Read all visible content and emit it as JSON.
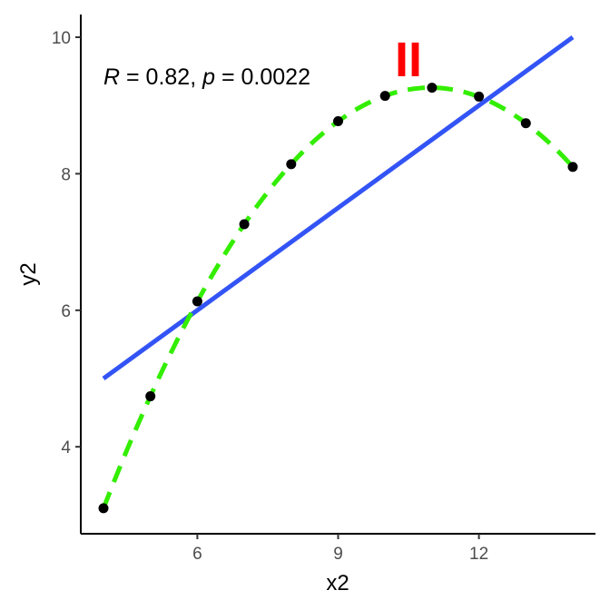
{
  "chart_data": {
    "type": "scatter",
    "xlabel": "x2",
    "ylabel": "y2",
    "xlim": [
      3.5,
      14.5
    ],
    "ylim": [
      2.7,
      10.35
    ],
    "xticks": [
      6,
      9,
      12
    ],
    "yticks": [
      4,
      6,
      8,
      10
    ],
    "grid": false,
    "points": {
      "x": [
        4,
        5,
        6,
        7,
        8,
        9,
        10,
        11,
        12,
        13,
        14
      ],
      "y": [
        3.1,
        4.74,
        6.13,
        7.26,
        8.14,
        8.77,
        9.14,
        9.26,
        9.13,
        8.74,
        8.1
      ]
    },
    "linear_fit": {
      "x": [
        4,
        14
      ],
      "y": [
        5.0,
        10.0
      ],
      "color": "#3354f5"
    },
    "smooth_fit": {
      "x": [
        4,
        5,
        6,
        7,
        8,
        9,
        10,
        11,
        12,
        13,
        14
      ],
      "y": [
        3.1,
        4.74,
        6.13,
        7.26,
        8.14,
        8.77,
        9.14,
        9.26,
        9.13,
        8.74,
        8.1
      ],
      "color": "#33ee00"
    },
    "annotation": {
      "r_label": "R",
      "r_value": " = 0.82, ",
      "p_label": "p",
      "p_value": " = 0.0022"
    },
    "panel_label": {
      "text": "II",
      "color": "#ff0000"
    }
  }
}
